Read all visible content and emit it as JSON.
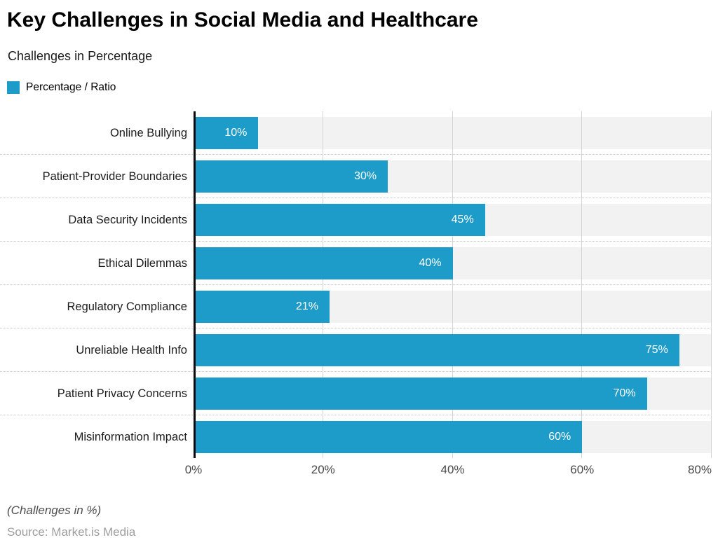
{
  "header": {
    "title": "Key Challenges in Social Media and Healthcare",
    "subtitle": "Challenges in Percentage"
  },
  "legend": {
    "label": "Percentage / Ratio",
    "color": "#1e9cc9"
  },
  "chart_data": {
    "type": "bar",
    "orientation": "horizontal",
    "title": "Key Challenges in Social Media and Healthcare",
    "subtitle": "Challenges in Percentage",
    "series_name": "Percentage / Ratio",
    "categories": [
      "Online Bullying",
      "Patient-Provider Boundaries",
      "Data Security Incidents",
      "Ethical Dilemmas",
      "Regulatory Compliance",
      "Unreliable Health Info",
      "Patient Privacy Concerns",
      "Misinformation Impact"
    ],
    "values": [
      10,
      30,
      45,
      40,
      21,
      75,
      70,
      60
    ],
    "value_labels": [
      "10%",
      "30%",
      "45%",
      "40%",
      "21%",
      "75%",
      "70%",
      "60%"
    ],
    "x_axis": {
      "ticks": [
        "0%",
        "20%",
        "40%",
        "60%",
        "80%"
      ],
      "tick_values": [
        0,
        20,
        40,
        60,
        80
      ],
      "max": 80
    },
    "bar_color": "#1e9cc9",
    "band_color": "#f2f2f2",
    "grid": true,
    "legend_position": "top-left",
    "xlabel": "",
    "ylabel": ""
  },
  "footer": {
    "note": "(Challenges in %)",
    "source": "Source: Market.is Media"
  }
}
